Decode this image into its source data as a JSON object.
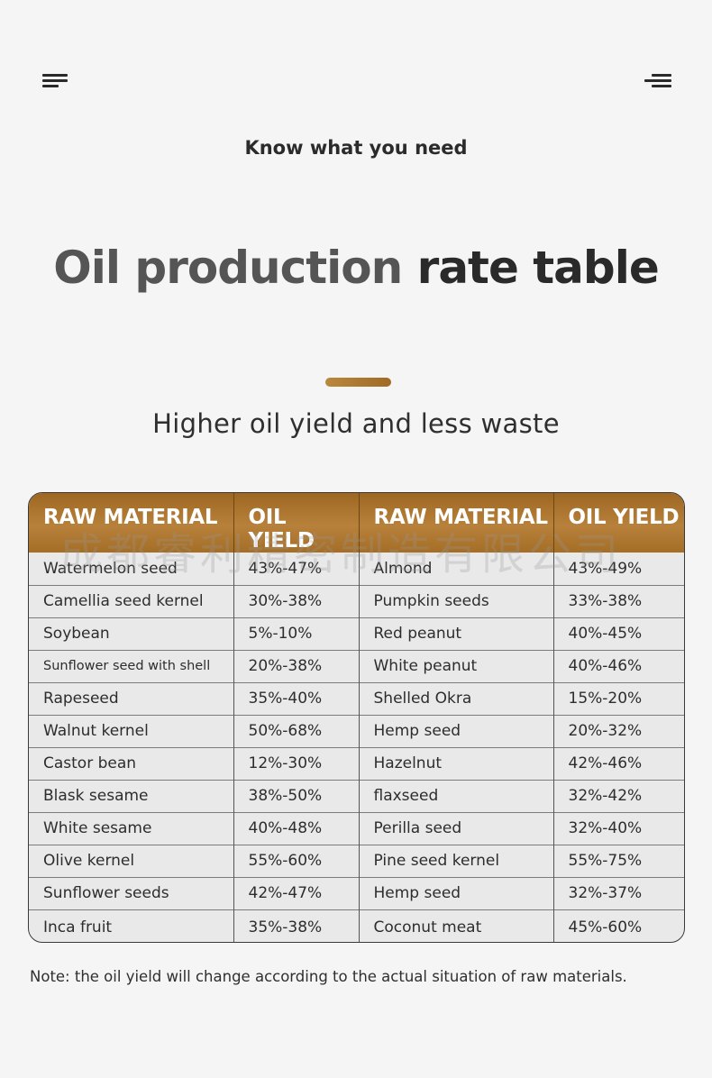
{
  "header": {
    "kicker": "Know what you need",
    "title_part1": "Oil production",
    "title_part2": "rate table",
    "subtitle": "Higher oil yield and less waste"
  },
  "icons": {
    "left": "menu-lines-icon",
    "right": "menu-lines-icon"
  },
  "colors": {
    "accent": "#a97430",
    "background": "#f5f5f5"
  },
  "table": {
    "headers": [
      "RAW MATERIAL",
      "OIL YIELD",
      "RAW MATERIAL",
      "OIL YIELD"
    ],
    "rows": [
      [
        "Watermelon seed",
        "43%-47%",
        "Almond",
        "43%-49%"
      ],
      [
        "Camellia seed kernel",
        "30%-38%",
        "Pumpkin seeds",
        "33%-38%"
      ],
      [
        "Soybean",
        "5%-10%",
        "Red peanut",
        "40%-45%"
      ],
      [
        "Sunflower seed with shell",
        "20%-38%",
        "White peanut",
        "40%-46%"
      ],
      [
        "Rapeseed",
        "35%-40%",
        "Shelled Okra",
        "15%-20%"
      ],
      [
        "Walnut kernel",
        "50%-68%",
        "Hemp seed",
        "20%-32%"
      ],
      [
        "Castor bean",
        "12%-30%",
        "Hazelnut",
        "42%-46%"
      ],
      [
        "Blask sesame",
        "38%-50%",
        "flaxseed",
        "32%-42%"
      ],
      [
        "White sesame",
        "40%-48%",
        "Perilla seed",
        "32%-40%"
      ],
      [
        "Olive kernel",
        "55%-60%",
        "Pine seed kernel",
        "55%-75%"
      ],
      [
        "Sunflower seeds",
        "42%-47%",
        "Hemp seed",
        "32%-37%"
      ],
      [
        "Inca fruit",
        "35%-38%",
        "Coconut meat",
        "45%-60%"
      ]
    ]
  },
  "watermark": "成都睿利精密制造有限公司",
  "note": "Note: the oil yield will change according to the actual situation of raw materials."
}
